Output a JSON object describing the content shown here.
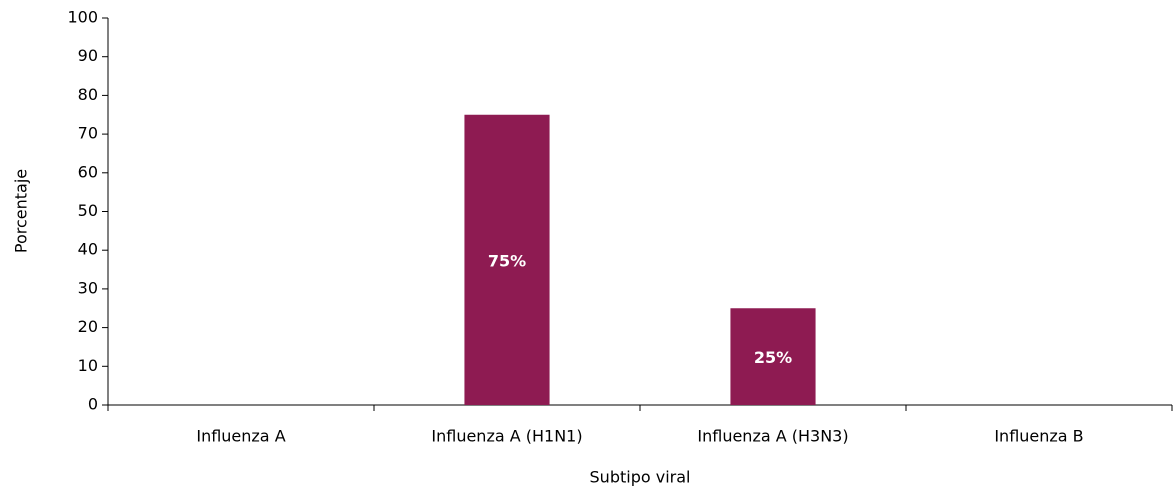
{
  "chart_data": {
    "type": "bar",
    "x_label": "Subtipo viral",
    "y_label": "Porcentaje",
    "categories": [
      "Influenza A",
      "Influenza A (H1N1)",
      "Influenza A (H3N3)",
      "Influenza B"
    ],
    "values": [
      0,
      75,
      25,
      0
    ],
    "value_labels": [
      null,
      "75%",
      "25%",
      null
    ],
    "color": "#8e1b52",
    "ylim": [
      0,
      100
    ],
    "yticks": [
      0,
      10,
      20,
      30,
      40,
      50,
      60,
      70,
      80,
      90,
      100
    ],
    "grid": false
  }
}
